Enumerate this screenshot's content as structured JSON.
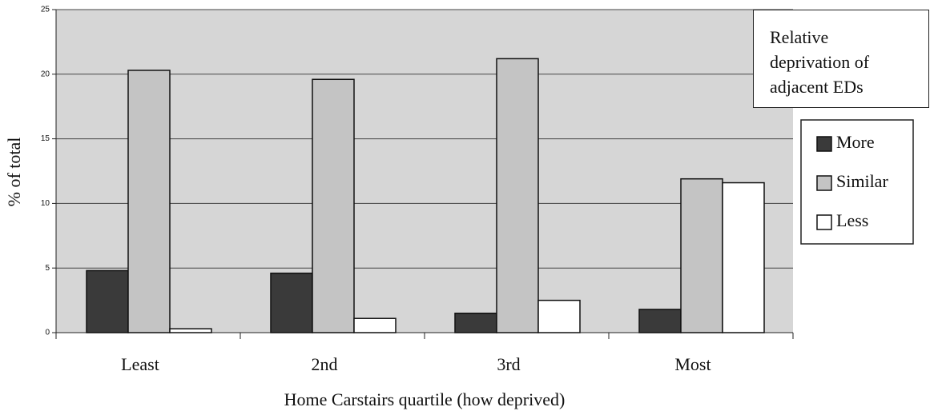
{
  "chart_data": {
    "type": "bar",
    "categories": [
      "Least",
      "2nd",
      "3rd",
      "Most"
    ],
    "series": [
      {
        "name": "More",
        "color": "#3a3a3a",
        "values": [
          4.8,
          4.6,
          1.5,
          1.8
        ]
      },
      {
        "name": "Similar",
        "color": "#c4c4c4",
        "values": [
          20.3,
          19.6,
          21.2,
          11.9
        ]
      },
      {
        "name": "Less",
        "color": "#ffffff",
        "values": [
          0.3,
          1.1,
          2.5,
          11.6
        ]
      }
    ],
    "ylabel": "% of total",
    "xlabel": "Home Carstairs quartile (how deprived)",
    "legend_title": "Relative deprivation of adjacent EDs",
    "ylim": [
      0,
      25
    ],
    "yticks": [
      0,
      5,
      10,
      15,
      20,
      25
    ],
    "grid": true
  }
}
